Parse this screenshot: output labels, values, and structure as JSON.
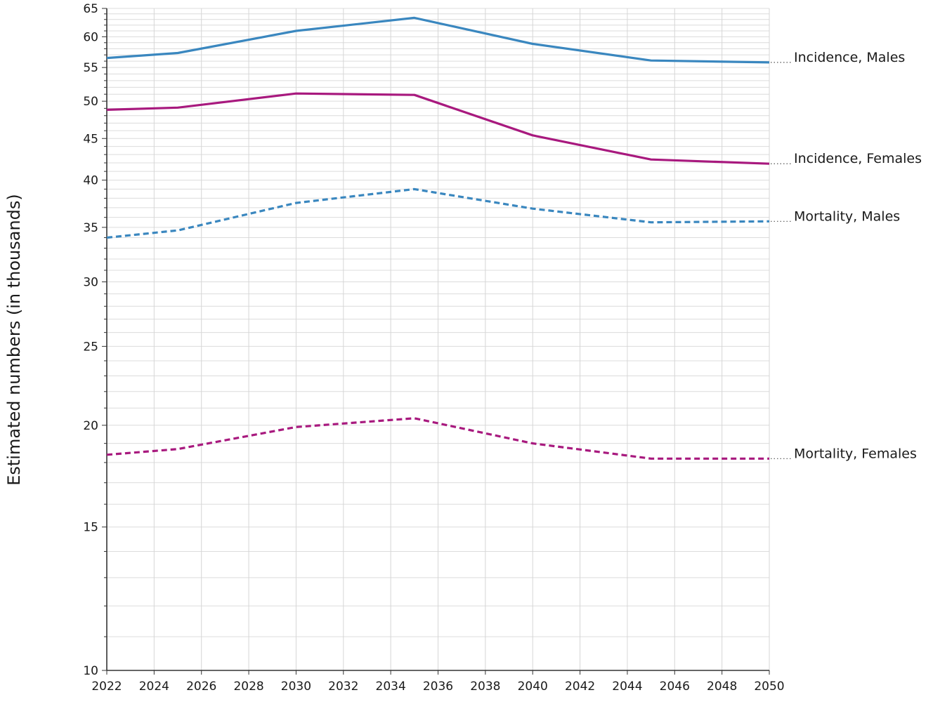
{
  "chart_data": {
    "type": "line",
    "title": "",
    "xlabel": "",
    "ylabel": "Estimated numbers (in thousands)",
    "yscale": "log",
    "xlim": [
      2022,
      2050
    ],
    "ylim": [
      10,
      65
    ],
    "xticks": [
      "2022",
      "2024",
      "2026",
      "2028",
      "2030",
      "2032",
      "2034",
      "2036",
      "2038",
      "2040",
      "2042",
      "2044",
      "2046",
      "2048",
      "2050"
    ],
    "yticks": [
      "10",
      "15",
      "20",
      "25",
      "30",
      "35",
      "40",
      "45",
      "50",
      "55",
      "60",
      "65"
    ],
    "grid": true,
    "legend_placement": "right, inline labels at line ends",
    "x": [
      2022,
      2025,
      2030,
      2035,
      2040,
      2045,
      2050
    ],
    "series": [
      {
        "name": "Incidence, Males",
        "values": [
          56.5,
          57.3,
          61.0,
          63.3,
          58.8,
          56.1,
          55.8
        ],
        "color": "#3a87bf",
        "style": "solid"
      },
      {
        "name": "Incidence, Females",
        "values": [
          48.8,
          49.1,
          51.1,
          50.9,
          45.4,
          42.4,
          41.9
        ],
        "color": "#a8197e",
        "style": "solid"
      },
      {
        "name": "Mortality, Males",
        "values": [
          34.0,
          34.7,
          37.5,
          39.0,
          36.9,
          35.5,
          35.6
        ],
        "color": "#3a87bf",
        "style": "dashed"
      },
      {
        "name": "Mortality, Females",
        "values": [
          18.4,
          18.7,
          19.9,
          20.4,
          19.0,
          18.2,
          18.2
        ],
        "color": "#a8197e",
        "style": "dashed"
      }
    ]
  }
}
